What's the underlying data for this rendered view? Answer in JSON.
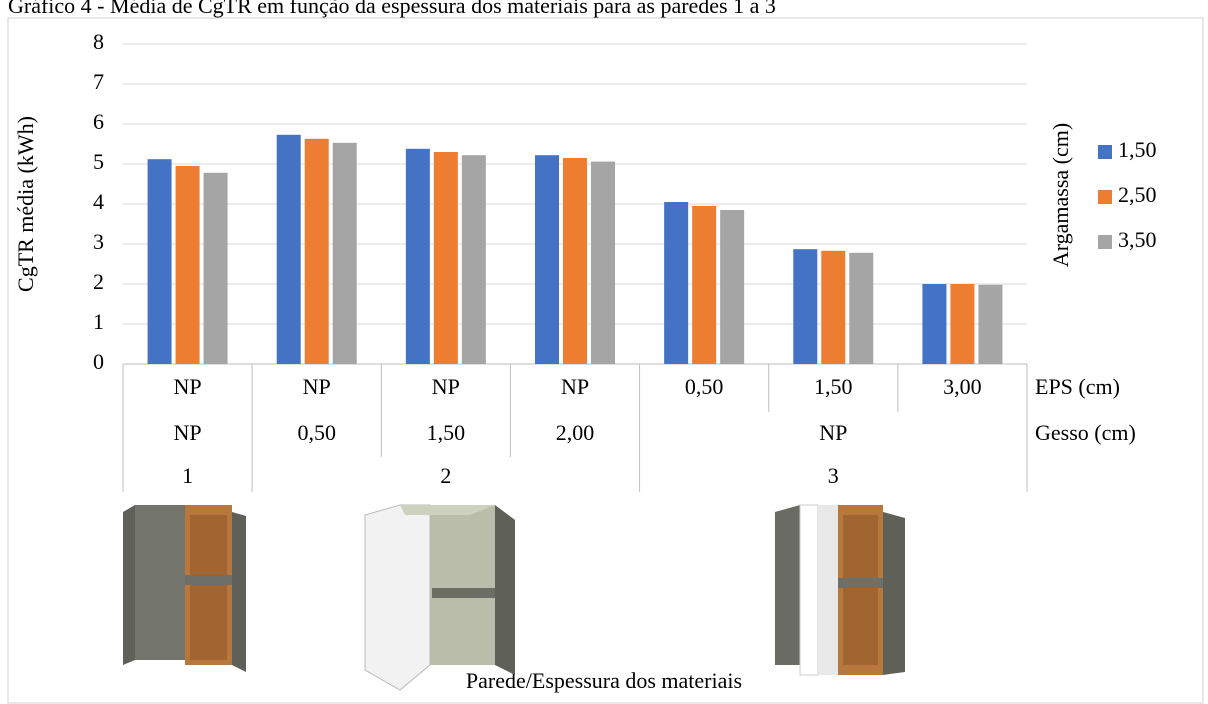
{
  "chart_data": {
    "type": "bar",
    "title": "Gráfico 4 - Média de CgTR em função da espessura dos materiais para as paredes 1 a 3",
    "y_label": "CgTR média (kWh)",
    "x_label": "Parede/Espessura dos materiais",
    "category_name": "EPS (cm)",
    "categories": [
      "NP",
      "NP",
      "NP",
      "NP",
      "0,50",
      "1,50",
      "3,00"
    ],
    "category_levels": [
      {
        "name": "Gesso (cm)",
        "labels": [
          "NP",
          "0,50",
          "1,50",
          "2,00",
          "NP",
          null,
          null
        ]
      },
      {
        "labels": [
          "1",
          "2",
          null,
          null,
          "3",
          null,
          null
        ]
      }
    ],
    "legend_title": "Argamassa (cm)",
    "legend_position": "right",
    "series": [
      {
        "name": "1,50",
        "color": "#4472c4",
        "values": [
          5.12,
          5.73,
          5.38,
          5.22,
          4.05,
          2.87,
          2.0
        ]
      },
      {
        "name": "2,50",
        "color": "#ed7d31",
        "values": [
          4.95,
          5.63,
          5.3,
          5.15,
          3.95,
          2.83,
          2.0
        ]
      },
      {
        "name": "3,50",
        "color": "#a5a5a5",
        "values": [
          4.78,
          5.53,
          5.22,
          5.06,
          3.85,
          2.78,
          1.98
        ]
      }
    ],
    "ylim": [
      0,
      8
    ],
    "yticks": [
      0,
      1,
      2,
      3,
      4,
      5,
      6,
      7,
      8
    ],
    "grid": true
  }
}
